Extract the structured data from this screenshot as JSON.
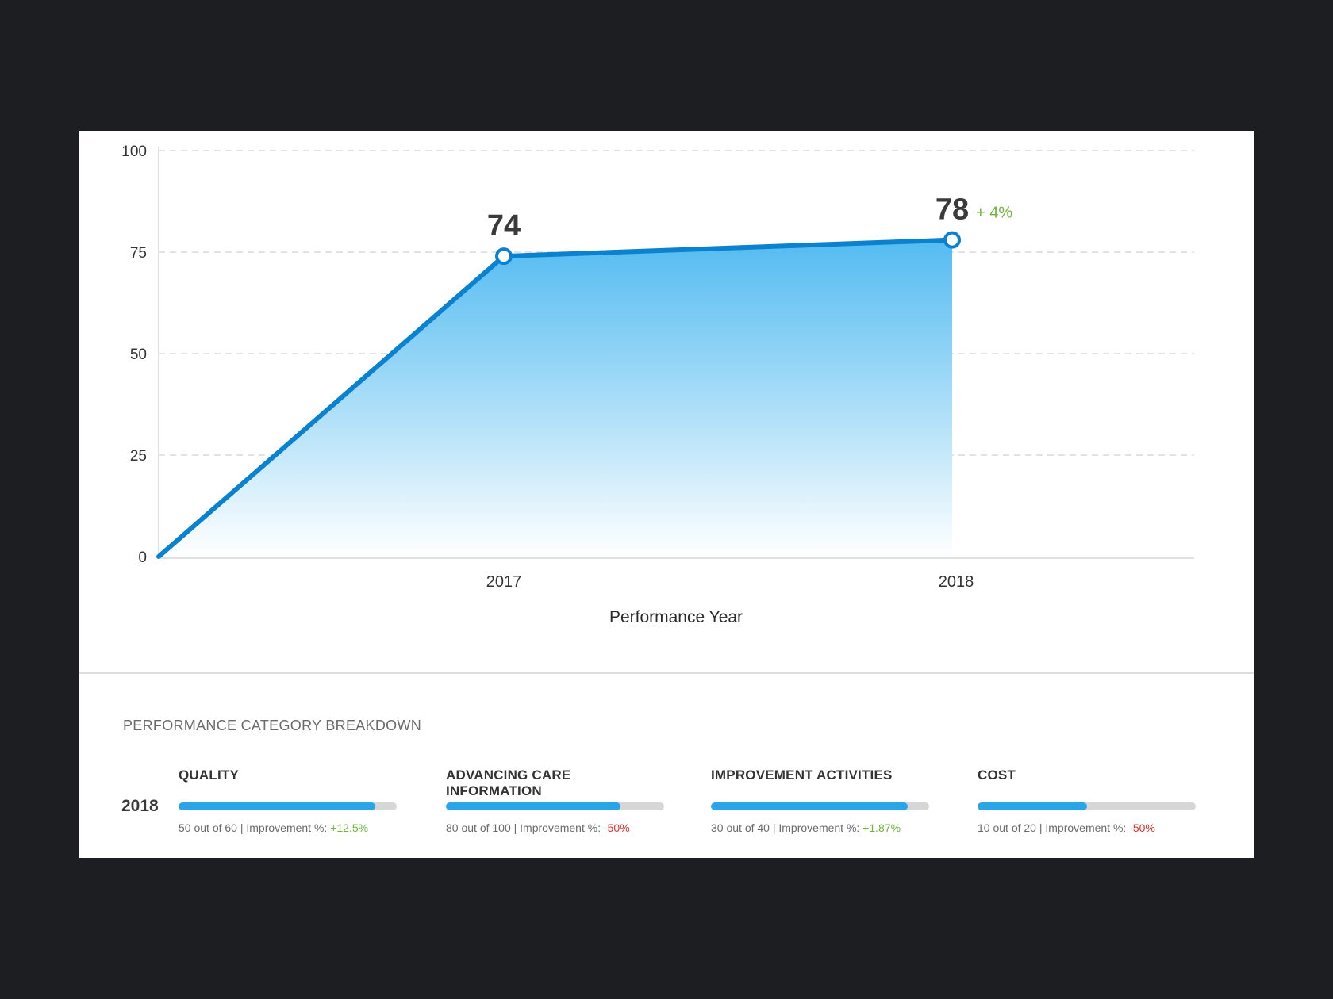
{
  "chart_data": {
    "type": "area",
    "xlabel": "Performance Year",
    "ylabel": "",
    "ylim": [
      0,
      100
    ],
    "yticks": [
      0,
      25,
      50,
      75,
      100
    ],
    "grid": true,
    "x": [
      "",
      "2017",
      "2018"
    ],
    "series": [
      {
        "values": [
          0,
          74,
          78
        ]
      }
    ],
    "point_labels": [
      {
        "x": "2017",
        "value": "74"
      },
      {
        "x": "2018",
        "value": "78",
        "change": "+ 4%"
      }
    ],
    "colors": {
      "line": "#0a82d0",
      "fill_top": "#4bb8f0",
      "fill_bottom": "#ffffff",
      "change_positive": "#6fb33a",
      "grid": "#d8d8d8",
      "axis": "#e0e0e0"
    }
  },
  "breakdown": {
    "title": "PERFORMANCE CATEGORY BREAKDOWN",
    "year": "2018",
    "categories": [
      {
        "name": "QUALITY",
        "score": "50 out of 60",
        "sep": " | Improvement %: ",
        "improvement": "+12.5%",
        "fill": 0.9,
        "trend": "pos"
      },
      {
        "name": "ADVANCING CARE INFORMATION",
        "score": "80 out of 100",
        "sep": " | Improvement %: ",
        "improvement": "-50%",
        "fill": 0.8,
        "trend": "neg"
      },
      {
        "name": "IMPROVEMENT ACTIVITIES",
        "score": "30 out of 40",
        "sep": " | Improvement %: ",
        "improvement": "+1.87%",
        "fill": 0.9,
        "trend": "pos"
      },
      {
        "name": "COST",
        "score": "10 out of 20",
        "sep": " | Improvement %: ",
        "improvement": "-50%",
        "fill": 0.5,
        "trend": "neg"
      }
    ]
  }
}
